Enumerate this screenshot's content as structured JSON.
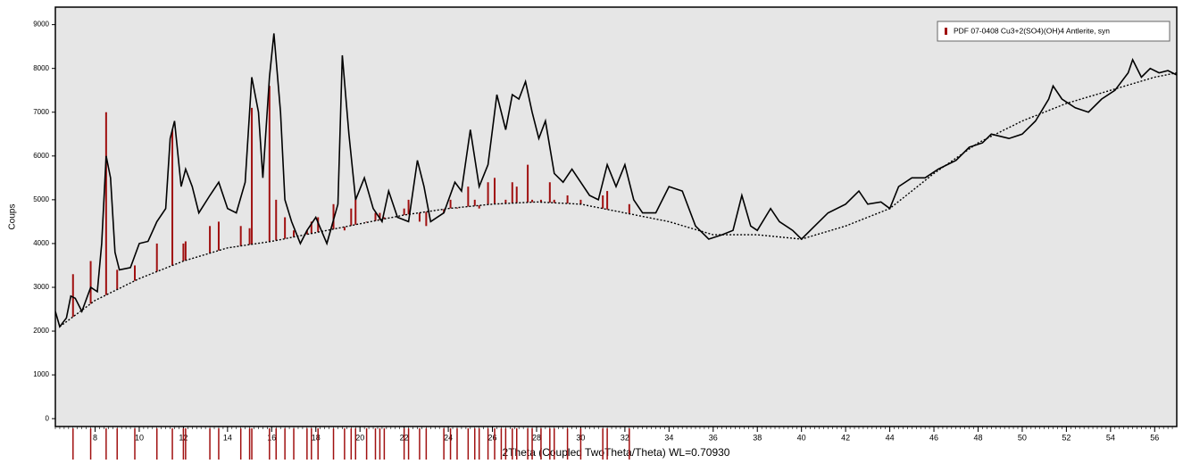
{
  "chart_data": {
    "type": "line",
    "y_label": "Coups",
    "x_label": "2Theta (Coupled TwoTheta/Theta) WL=0.70930",
    "xlim": [
      6.2,
      57
    ],
    "ylim": [
      -180,
      9400
    ],
    "xticks": [
      8,
      10,
      12,
      14,
      16,
      18,
      20,
      22,
      24,
      26,
      28,
      30,
      32,
      34,
      36,
      38,
      40,
      42,
      44,
      46,
      48,
      50,
      52,
      54,
      56
    ],
    "yticks": [
      0,
      1000,
      2000,
      3000,
      4000,
      5000,
      6000,
      7000,
      8000,
      9000
    ],
    "legend_position": "upper right",
    "series": [
      {
        "type": "line",
        "style": "solid",
        "color": "#000000",
        "x": [
          6.2,
          6.4,
          6.7,
          6.9,
          7.1,
          7.4,
          7.8,
          8.1,
          8.3,
          8.5,
          8.7,
          8.9,
          9.1,
          9.6,
          10.0,
          10.4,
          10.8,
          11.2,
          11.4,
          11.6,
          11.9,
          12.1,
          12.4,
          12.7,
          13.2,
          13.6,
          14.0,
          14.4,
          14.8,
          15.1,
          15.4,
          15.6,
          15.9,
          16.1,
          16.4,
          16.6,
          16.9,
          17.3,
          17.6,
          18.0,
          18.5,
          19.0,
          19.2,
          19.5,
          19.8,
          20.2,
          20.6,
          21.0,
          21.3,
          21.7,
          22.2,
          22.6,
          22.9,
          23.2,
          23.8,
          24.3,
          24.6,
          25.0,
          25.4,
          25.8,
          26.2,
          26.6,
          26.9,
          27.2,
          27.5,
          27.8,
          28.1,
          28.4,
          28.8,
          29.2,
          29.6,
          30.0,
          30.4,
          30.8,
          31.2,
          31.6,
          32.0,
          32.4,
          32.8,
          33.4,
          34.0,
          34.6,
          35.2,
          35.8,
          36.4,
          36.9,
          37.3,
          37.7,
          38.0,
          38.6,
          39.0,
          39.6,
          40.0,
          40.6,
          41.2,
          42.0,
          42.6,
          43.0,
          43.6,
          44.0,
          44.4,
          45.0,
          45.6,
          46.2,
          47.0,
          47.6,
          48.2,
          48.6,
          49.4,
          50.0,
          50.6,
          51.2,
          51.4,
          51.8,
          52.4,
          53.0,
          53.6,
          54.2,
          54.8,
          55.0,
          55.4,
          55.8,
          56.2,
          56.6,
          57.0
        ],
        "values": [
          2450,
          2100,
          2300,
          2800,
          2750,
          2450,
          3000,
          2900,
          4000,
          6000,
          5500,
          3800,
          3400,
          3450,
          4000,
          4050,
          4500,
          4800,
          6400,
          6800,
          5300,
          5700,
          5300,
          4700,
          5100,
          5400,
          4800,
          4700,
          5400,
          7800,
          7000,
          5500,
          7800,
          8800,
          7000,
          5000,
          4500,
          4000,
          4300,
          4600,
          4000,
          4900,
          8300,
          6500,
          5000,
          5500,
          4800,
          4500,
          5200,
          4600,
          4500,
          5900,
          5300,
          4500,
          4700,
          5400,
          5200,
          6600,
          5300,
          5800,
          7400,
          6600,
          7400,
          7300,
          7700,
          7000,
          6400,
          6800,
          5600,
          5400,
          5700,
          5400,
          5100,
          5000,
          5800,
          5300,
          5800,
          5000,
          4700,
          4700,
          5300,
          5200,
          4400,
          4100,
          4200,
          4300,
          5100,
          4400,
          4300,
          4800,
          4500,
          4300,
          4100,
          4400,
          4700,
          4900,
          5200,
          4900,
          4950,
          4800,
          5300,
          5500,
          5500,
          5700,
          5900,
          6200,
          6300,
          6500,
          6400,
          6500,
          6800,
          7300,
          7600,
          7300,
          7100,
          7000,
          7300,
          7500,
          7900,
          8200,
          7800,
          8000,
          7900,
          7950,
          7850
        ]
      },
      {
        "type": "line",
        "style": "dotted",
        "color": "#000000",
        "x": [
          6.4,
          8,
          10,
          12,
          14,
          16,
          18,
          20,
          22,
          24,
          26,
          28,
          30,
          32,
          34,
          36,
          38,
          40,
          42,
          44,
          46,
          48,
          50,
          52,
          54,
          56,
          57
        ],
        "values": [
          2100,
          2700,
          3200,
          3600,
          3900,
          4050,
          4250,
          4450,
          4650,
          4800,
          4900,
          4950,
          4900,
          4700,
          4500,
          4200,
          4200,
          4100,
          4400,
          4800,
          5600,
          6300,
          6800,
          7200,
          7500,
          7800,
          7900
        ]
      },
      {
        "type": "stick",
        "name": "PDF 07-0408 Cu3+2(SO4)(OH)4 Antlerite, syn",
        "color": "#a01010",
        "x": [
          7.0,
          7.8,
          8.5,
          9.0,
          9.8,
          10.8,
          11.5,
          12.0,
          12.1,
          13.2,
          13.6,
          14.6,
          15.0,
          15.1,
          15.9,
          16.2,
          16.6,
          17.0,
          17.6,
          17.8,
          18.1,
          18.8,
          19.3,
          19.6,
          19.8,
          20.3,
          20.7,
          20.9,
          21.1,
          22.0,
          22.2,
          22.7,
          23.0,
          23.8,
          24.1,
          24.4,
          24.9,
          25.2,
          25.4,
          25.8,
          26.1,
          26.4,
          26.6,
          26.9,
          27.1,
          27.6,
          27.8,
          28.2,
          28.6,
          28.8,
          29.4,
          30.0,
          31.0,
          31.2,
          32.2
        ],
        "values": [
          3300,
          3600,
          7000,
          3400,
          3500,
          4000,
          6600,
          4000,
          4050,
          4400,
          4500,
          4400,
          4350,
          7100,
          7600,
          5000,
          4600,
          4300,
          4300,
          4500,
          4600,
          4900,
          4300,
          4800,
          5000,
          4500,
          4700,
          4700,
          4600,
          4800,
          5000,
          4500,
          4400,
          4700,
          5000,
          4800,
          5300,
          5000,
          4800,
          5400,
          5500,
          4900,
          5000,
          5400,
          5300,
          5800,
          5000,
          5000,
          5400,
          5000,
          5100,
          5000,
          5100,
          5200,
          4900
        ]
      }
    ]
  }
}
